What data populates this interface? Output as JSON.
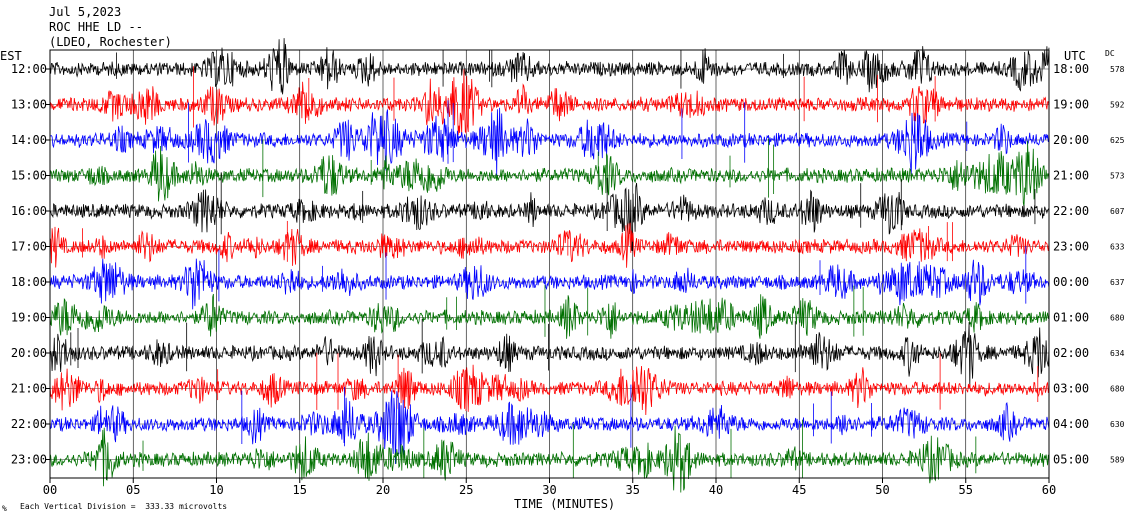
{
  "header": {
    "date": "Jul 5,2023",
    "station": "ROC HHE LD --",
    "network": "(LDEO, Rochester)"
  },
  "left_axis_title": "EST",
  "right_axis_title": "UTC",
  "dc_title": "DC",
  "footer": {
    "scale_note": "Each Vertical Division =  333.33 microvolts",
    "corner_mark": "%"
  },
  "chart_data": {
    "type": "line",
    "xlabel": "TIME (MINUTES)",
    "xlim": [
      0,
      60
    ],
    "x_ticks": [
      "00",
      "05",
      "10",
      "15",
      "20",
      "25",
      "30",
      "35",
      "40",
      "45",
      "50",
      "55",
      "60"
    ],
    "grid": true,
    "trace_colors": [
      "#000000",
      "#ff0000",
      "#0000ff",
      "#007000"
    ],
    "rows": [
      {
        "est": "12:00",
        "utc": "18:00",
        "dc": "578",
        "color": "#000000"
      },
      {
        "est": "13:00",
        "utc": "19:00",
        "dc": "592",
        "color": "#ff0000"
      },
      {
        "est": "14:00",
        "utc": "20:00",
        "dc": "625",
        "color": "#0000ff"
      },
      {
        "est": "15:00",
        "utc": "21:00",
        "dc": "573",
        "color": "#007000"
      },
      {
        "est": "16:00",
        "utc": "22:00",
        "dc": "607",
        "color": "#000000"
      },
      {
        "est": "17:00",
        "utc": "23:00",
        "dc": "633",
        "color": "#ff0000"
      },
      {
        "est": "18:00",
        "utc": "00:00",
        "dc": "637",
        "color": "#0000ff"
      },
      {
        "est": "19:00",
        "utc": "01:00",
        "dc": "680",
        "color": "#007000"
      },
      {
        "est": "20:00",
        "utc": "02:00",
        "dc": "634",
        "color": "#000000"
      },
      {
        "est": "21:00",
        "utc": "03:00",
        "dc": "680",
        "color": "#ff0000"
      },
      {
        "est": "22:00",
        "utc": "04:00",
        "dc": "630",
        "color": "#0000ff"
      },
      {
        "est": "23:00",
        "utc": "05:00",
        "dc": "589",
        "color": "#007000"
      }
    ]
  }
}
